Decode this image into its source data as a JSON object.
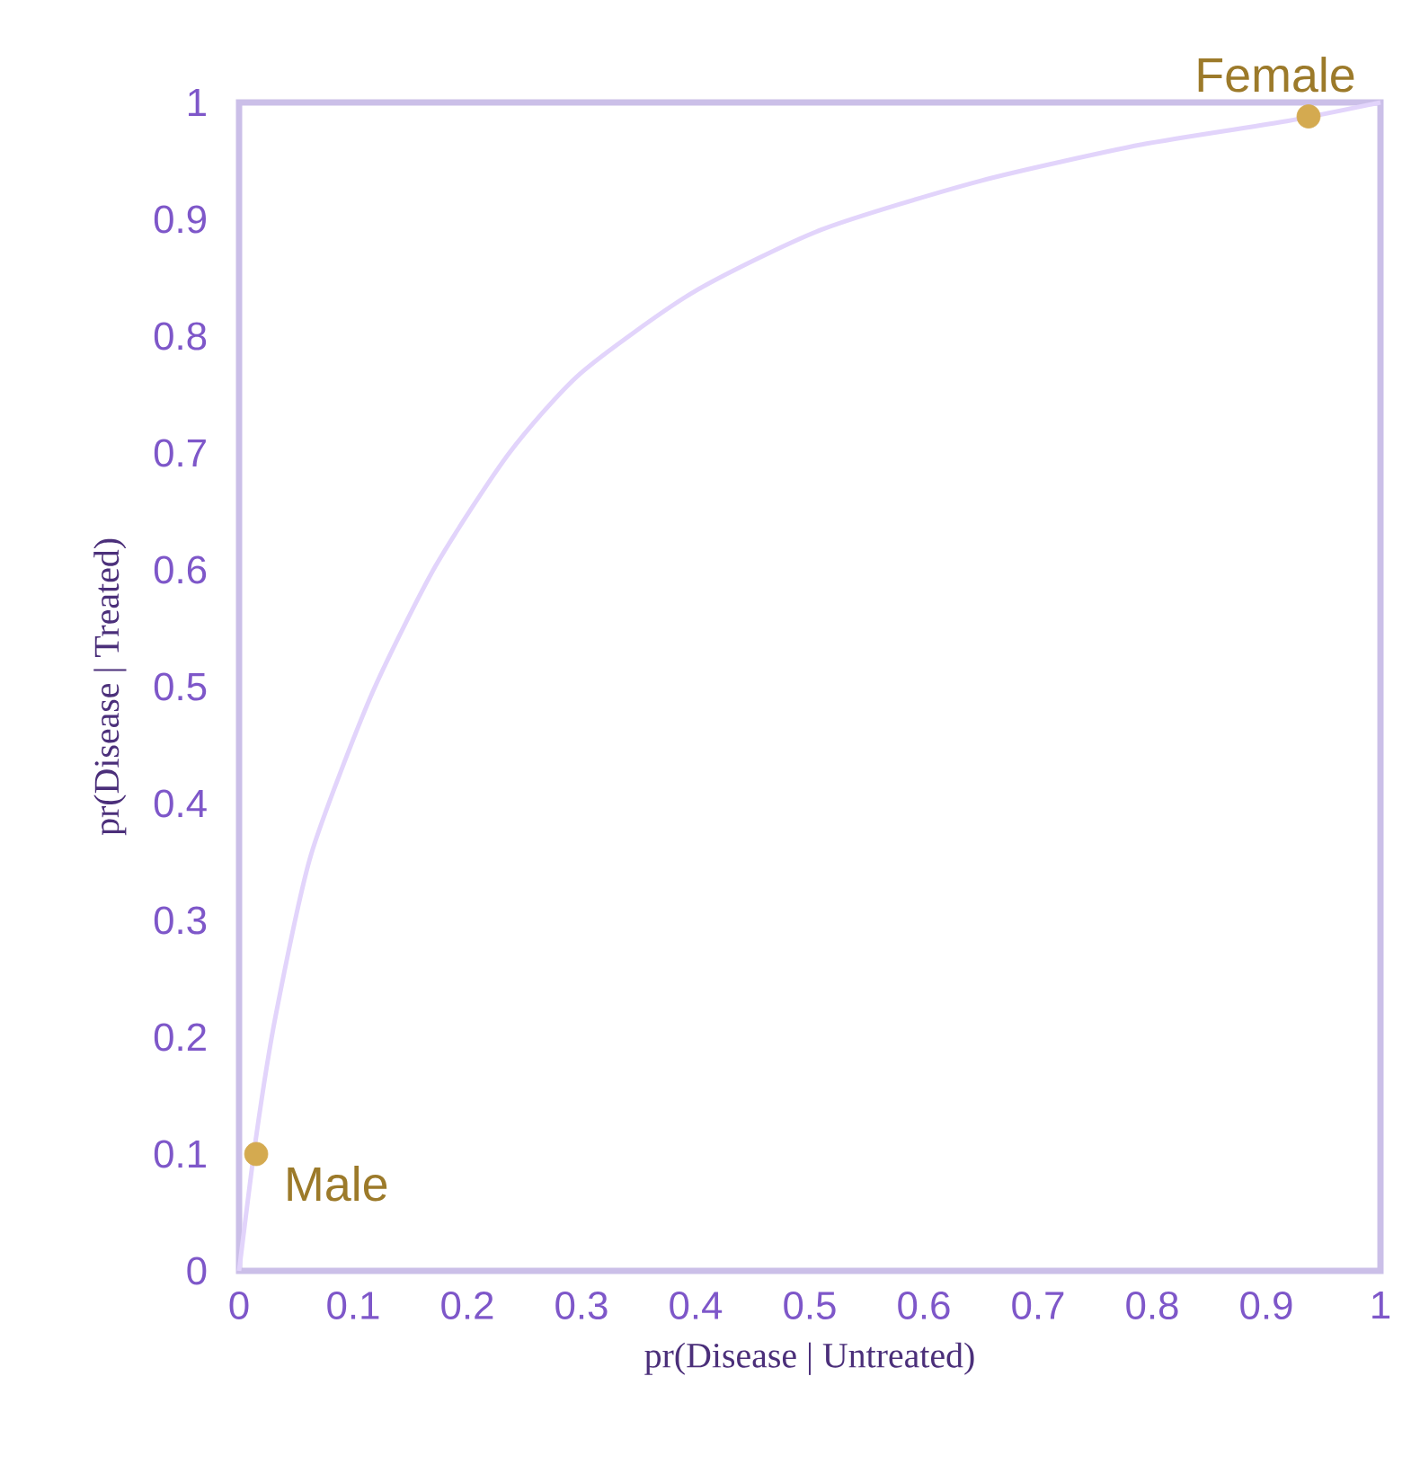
{
  "chart_data": {
    "type": "line",
    "xlabel": "pr(Disease | Untreated)",
    "ylabel": "pr(Disease | Treated)",
    "xlim": [
      0,
      1
    ],
    "ylim": [
      0,
      1
    ],
    "xticks": [
      0,
      0.1,
      0.2,
      0.3,
      0.4,
      0.5,
      0.6,
      0.7,
      0.8,
      0.9,
      1
    ],
    "yticks": [
      0,
      0.1,
      0.2,
      0.3,
      0.4,
      0.5,
      0.6,
      0.7,
      0.8,
      0.9,
      1
    ],
    "grid": false,
    "legend": false,
    "series": [
      {
        "color": "#e2d4fb",
        "marker": "none",
        "line_style": "solid",
        "x": [
          0,
          0.015,
          0.032,
          0.063,
          0.116,
          0.172,
          0.236,
          0.299,
          0.397,
          0.51,
          0.65,
          0.791,
          0.918,
          1
        ],
        "values": [
          0,
          0.115,
          0.218,
          0.356,
          0.493,
          0.603,
          0.699,
          0.768,
          0.837,
          0.891,
          0.933,
          0.964,
          0.984,
          1
        ]
      },
      {
        "type": "scatter",
        "color": "#d4aa50",
        "marker": "circle",
        "x": [
          0.015,
          0.937
        ],
        "values": [
          0.1,
          0.988
        ]
      }
    ],
    "annotations": [
      {
        "text": "Male",
        "x": 0.015,
        "y": 0.1
      },
      {
        "text": "Female",
        "x": 0.937,
        "y": 0.988
      }
    ]
  }
}
